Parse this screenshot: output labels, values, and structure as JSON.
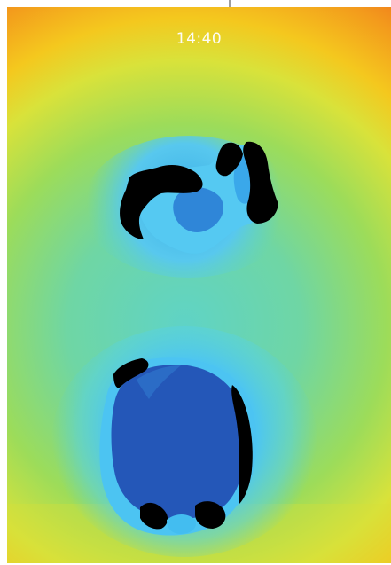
{
  "status_bar": {
    "time": "14:40"
  },
  "depth_view": {
    "colormap": [
      "#1e3fa0",
      "#1f5fd0",
      "#3fb6f2",
      "#5fd3c0",
      "#7cd67a",
      "#d8e03a",
      "#f2b21c",
      "#e6281f"
    ],
    "occlusion_color": "#000000"
  }
}
